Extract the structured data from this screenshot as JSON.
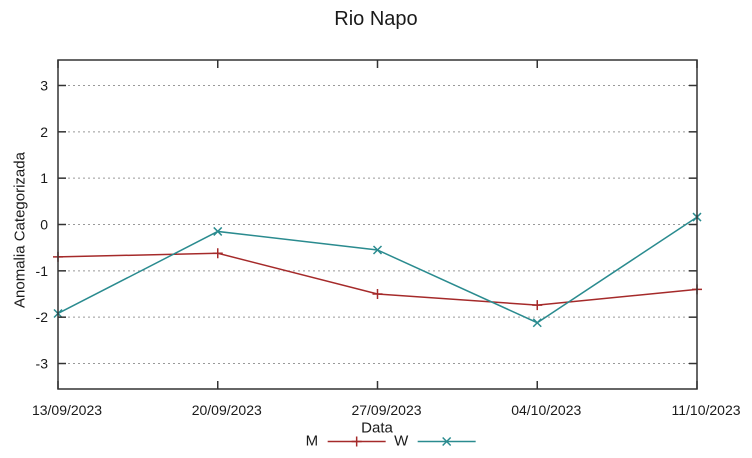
{
  "chart_data": {
    "type": "line",
    "title": "Rio Napo",
    "xlabel": "Data",
    "ylabel": "Anomalia Categorizada",
    "categories": [
      "13/09/2023",
      "20/09/2023",
      "27/09/2023",
      "04/10/2023",
      "11/10/2023"
    ],
    "series": [
      {
        "name": "M",
        "marker": "plus",
        "color": "#a52a2a",
        "values": [
          -0.7,
          -0.62,
          -1.5,
          -1.74,
          -1.4
        ]
      },
      {
        "name": "W",
        "marker": "cross",
        "color": "#2a8b8f",
        "values": [
          -1.92,
          -0.15,
          -0.55,
          -2.12,
          0.16
        ]
      }
    ],
    "yticks": [
      -3,
      -2,
      -1,
      0,
      1,
      2,
      3
    ],
    "ylim": [
      -3.55,
      3.55
    ],
    "grid": "horizontal-dotted",
    "legend_position": "bottom-center",
    "axis_color": "#333333",
    "grid_color": "#999999",
    "text_color": "#1a1a1a"
  }
}
